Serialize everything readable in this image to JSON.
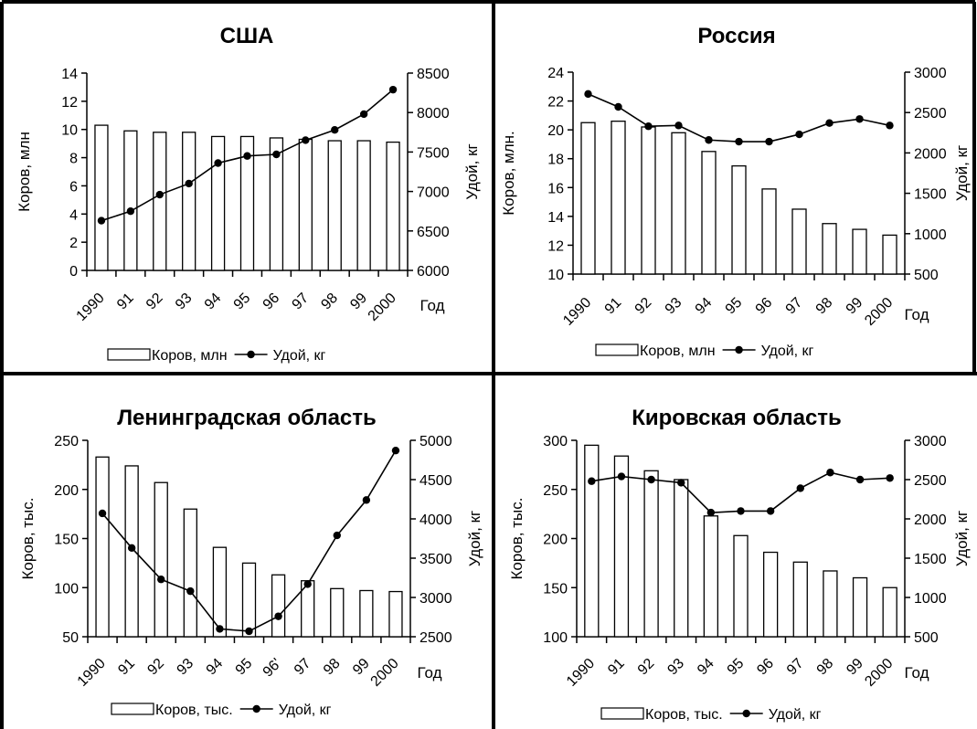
{
  "chart_data": [
    {
      "type": "bar",
      "title": "США",
      "categories": [
        "1990",
        "91",
        "92",
        "93",
        "94",
        "95",
        "96",
        "97",
        "98",
        "99",
        "2000"
      ],
      "xlabel": "Год",
      "ylabel": "Коров, млн",
      "y2label": "Удой, кг",
      "ylim": [
        0,
        14
      ],
      "yticks": [
        "0",
        "2",
        "4",
        "6",
        "8",
        "10",
        "12",
        "14"
      ],
      "y2lim": [
        6000,
        8500
      ],
      "y2ticks": [
        "6000",
        "6500",
        "7000",
        "7500",
        "8000",
        "8500"
      ],
      "series": [
        {
          "name": "Коров, млн",
          "type": "bar",
          "axis": "left",
          "values": [
            10.3,
            9.9,
            9.8,
            9.8,
            9.5,
            9.5,
            9.4,
            9.3,
            9.2,
            9.2,
            9.1
          ]
        },
        {
          "name": "Удой, кг",
          "type": "line",
          "axis": "right",
          "values": [
            6630,
            6750,
            6960,
            7100,
            7360,
            7450,
            7470,
            7650,
            7780,
            7980,
            8290
          ]
        }
      ]
    },
    {
      "type": "bar",
      "title": "Россия",
      "categories": [
        "1990",
        "91",
        "92",
        "93",
        "94",
        "95",
        "96",
        "97",
        "98",
        "99",
        "2000"
      ],
      "xlabel": "Год",
      "ylabel": "Коров, млн.",
      "y2label": "Удой, кг",
      "ylim": [
        10,
        24
      ],
      "yticks": [
        "10",
        "12",
        "14",
        "16",
        "18",
        "20",
        "22",
        "24"
      ],
      "y2lim": [
        500,
        3000
      ],
      "y2ticks": [
        "500",
        "1000",
        "1500",
        "2000",
        "2500",
        "3000"
      ],
      "series": [
        {
          "name": "Коров, млн",
          "type": "bar",
          "axis": "left",
          "values": [
            20.5,
            20.6,
            20.2,
            19.8,
            18.5,
            17.5,
            15.9,
            14.5,
            13.5,
            13.1,
            12.7
          ]
        },
        {
          "name": "Удой, кг",
          "type": "line",
          "axis": "right",
          "values": [
            2730,
            2570,
            2330,
            2340,
            2160,
            2140,
            2140,
            2230,
            2370,
            2420,
            2340
          ]
        }
      ]
    },
    {
      "type": "bar",
      "title": "Ленинградская область",
      "categories": [
        "1990",
        "91",
        "92",
        "93",
        "94",
        "95",
        "96'",
        "97",
        "98",
        "99",
        "2000"
      ],
      "xlabel": "Год",
      "ylabel": "Коров, тыс.",
      "y2label": "Удой, кг",
      "ylim": [
        50,
        250
      ],
      "yticks": [
        "50",
        "100",
        "150",
        "200",
        "250"
      ],
      "y2lim": [
        2500,
        5000
      ],
      "y2ticks": [
        "2500",
        "3000",
        "3500",
        "4000",
        "4500",
        "5000"
      ],
      "series": [
        {
          "name": "Коров, тыс.",
          "type": "bar",
          "axis": "left",
          "values": [
            233,
            224,
            207,
            180,
            141,
            125,
            113,
            107,
            99,
            97,
            96
          ]
        },
        {
          "name": "Удой, кг",
          "type": "line",
          "axis": "right",
          "values": [
            4070,
            3630,
            3230,
            3080,
            2600,
            2570,
            2760,
            3170,
            3790,
            4240,
            4870
          ]
        }
      ]
    },
    {
      "type": "bar",
      "title": "Кировская область",
      "categories": [
        "1990",
        "91",
        "92",
        "93",
        "94",
        "95",
        "96",
        "97",
        "98",
        "99",
        "2000"
      ],
      "xlabel": "Год",
      "ylabel": "Коров, тыс.",
      "y2label": "Удой, кг",
      "ylim": [
        100,
        300
      ],
      "yticks": [
        "100",
        "150",
        "200",
        "250",
        "300"
      ],
      "y2lim": [
        500,
        3000
      ],
      "y2ticks": [
        "500",
        "1000",
        "1500",
        "2000",
        "2500",
        "3000"
      ],
      "series": [
        {
          "name": "Коров, тыс.",
          "type": "bar",
          "axis": "left",
          "values": [
            295,
            284,
            269,
            260,
            223,
            203,
            186,
            176,
            167,
            160,
            150
          ]
        },
        {
          "name": "Удой, кг",
          "type": "line",
          "axis": "right",
          "values": [
            2480,
            2540,
            2500,
            2460,
            2080,
            2100,
            2100,
            2390,
            2590,
            2500,
            2520
          ]
        }
      ]
    }
  ]
}
